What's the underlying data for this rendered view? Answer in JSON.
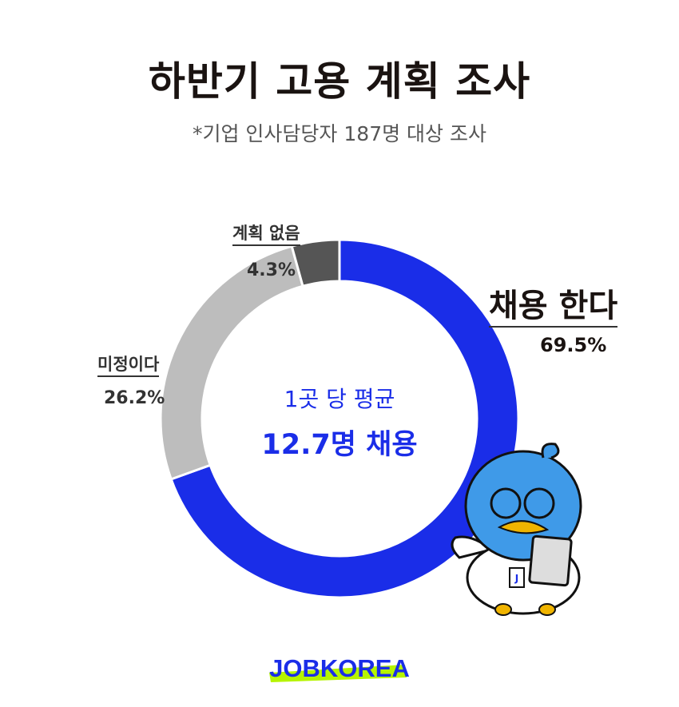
{
  "title": "하반기 고용 계획 조사",
  "subtitle": "*기업 인사담당자 187명 대상 조사",
  "chart_data": {
    "type": "pie",
    "donut": true,
    "categories": [
      "채용 한다",
      "미정이다",
      "계획 없음"
    ],
    "values": [
      69.5,
      26.2,
      4.3
    ],
    "value_labels": [
      "69.5%",
      "26.2%",
      "4.3%"
    ],
    "colors": [
      "#1a2de8",
      "#bdbdbd",
      "#555555"
    ],
    "start": "top, clockwise"
  },
  "center": {
    "line1": "1곳 당 평균",
    "line2": "12.7명 채용"
  },
  "logo": "JOBKOREA",
  "mascot_badge": "J"
}
